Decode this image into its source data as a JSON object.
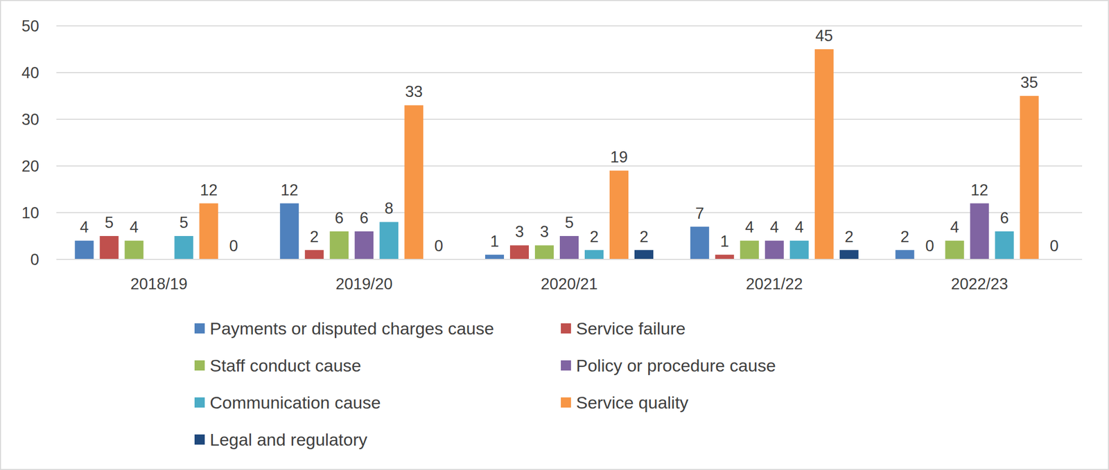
{
  "chart_data": {
    "type": "bar",
    "categories": [
      "2018/19",
      "2019/20",
      "2020/21",
      "2021/22",
      "2022/23"
    ],
    "series": [
      {
        "name": "Payments or disputed charges cause",
        "color": "#4f81bd",
        "values": [
          4,
          12,
          1,
          7,
          2
        ]
      },
      {
        "name": "Service failure",
        "color": "#c0504d",
        "values": [
          5,
          2,
          3,
          1,
          0
        ]
      },
      {
        "name": "Staff conduct cause",
        "color": "#9bbb59",
        "values": [
          4,
          6,
          3,
          4,
          4
        ]
      },
      {
        "name": "Policy or procedure cause",
        "color": "#8064a2",
        "values": [
          null,
          6,
          5,
          4,
          12
        ]
      },
      {
        "name": "Communication cause",
        "color": "#4bacc6",
        "values": [
          5,
          8,
          2,
          4,
          6
        ]
      },
      {
        "name": "Service quality",
        "color": "#f79646",
        "values": [
          12,
          33,
          19,
          45,
          35
        ]
      },
      {
        "name": "Legal and regulatory",
        "color": "#1f497d",
        "values": [
          0,
          0,
          2,
          2,
          0
        ]
      }
    ],
    "ylim": [
      0,
      50
    ],
    "yticks": [
      0,
      10,
      20,
      30,
      40,
      50
    ],
    "grid": true,
    "data_labels": true,
    "legend": "bottom"
  }
}
